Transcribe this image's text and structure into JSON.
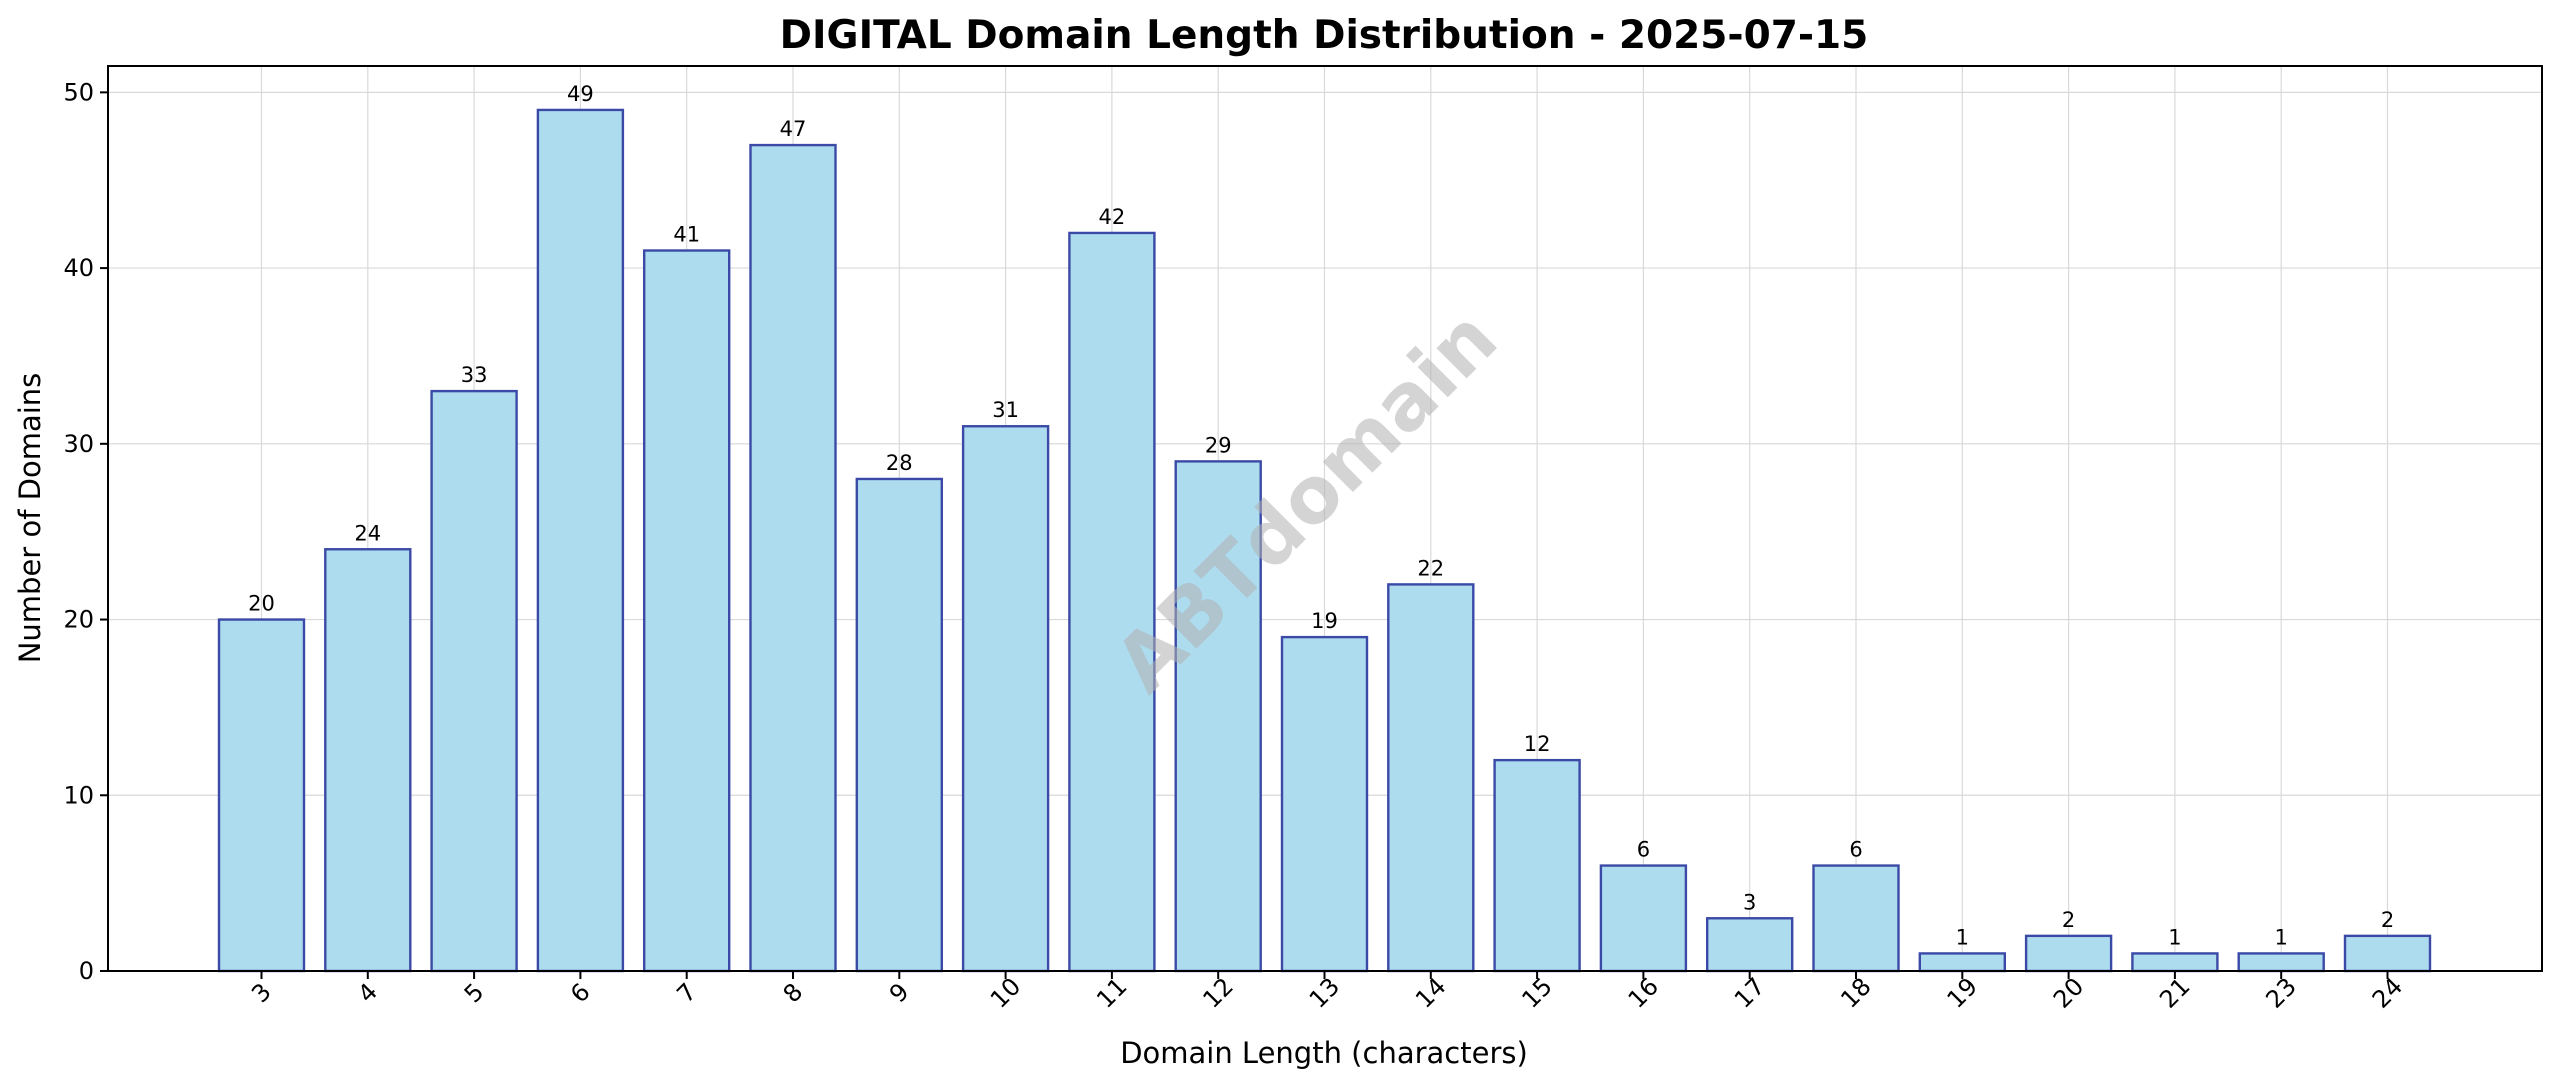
{
  "chart_data": {
    "type": "bar",
    "title": "DIGITAL Domain Length Distribution - 2025-07-15",
    "xlabel": "Domain Length (characters)",
    "ylabel": "Number of Domains",
    "categories": [
      "3",
      "4",
      "5",
      "6",
      "7",
      "8",
      "9",
      "10",
      "11",
      "12",
      "13",
      "14",
      "15",
      "16",
      "17",
      "18",
      "19",
      "20",
      "21",
      "23",
      "24"
    ],
    "values": [
      20,
      24,
      33,
      49,
      41,
      47,
      28,
      31,
      42,
      29,
      19,
      22,
      12,
      6,
      3,
      6,
      1,
      2,
      1,
      1,
      2
    ],
    "ylim": [
      0,
      51.5
    ],
    "yticks": [
      0,
      10,
      20,
      30,
      40,
      50
    ],
    "grid": true,
    "data_labels": true,
    "x_tick_rotation": 45,
    "colors": {
      "bar_fill": "#ADDCEF",
      "bar_edge": "#3A4AA6"
    },
    "watermark": "ABTdomain"
  }
}
